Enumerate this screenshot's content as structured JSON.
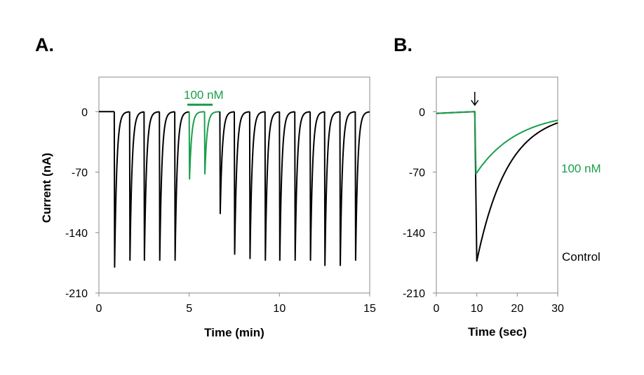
{
  "colors": {
    "control": "#000000",
    "drug": "#1a9e4b"
  },
  "chart_data": [
    {
      "panel_label": "A.",
      "type": "line",
      "xlabel": "Time (min)",
      "ylabel": "Current (nA)",
      "xlim": [
        0,
        15
      ],
      "ylim": [
        -210,
        40
      ],
      "xticks": [
        0,
        5,
        10,
        15
      ],
      "yticks": [
        0,
        -70,
        -140,
        -210
      ],
      "grid": false,
      "baseline": 0,
      "decay_tau_min": 0.12,
      "treatment": {
        "label": "100 nM",
        "bar_x": [
          4.9,
          6.3
        ],
        "bar_y": 8
      },
      "series": [
        {
          "role": "control",
          "color": "#000000",
          "pulses": [
            {
              "t": 0.85,
              "peak": -180
            },
            {
              "t": 1.7,
              "peak": -172
            },
            {
              "t": 2.5,
              "peak": -172
            },
            {
              "t": 3.35,
              "peak": -172
            },
            {
              "t": 4.2,
              "peak": -172
            },
            {
              "t": 6.7,
              "peak": -118
            },
            {
              "t": 7.5,
              "peak": -165
            },
            {
              "t": 8.35,
              "peak": -170
            },
            {
              "t": 9.2,
              "peak": -172
            },
            {
              "t": 10.0,
              "peak": -172
            },
            {
              "t": 10.85,
              "peak": -172
            },
            {
              "t": 11.7,
              "peak": -172
            },
            {
              "t": 12.5,
              "peak": -178
            },
            {
              "t": 13.35,
              "peak": -178
            },
            {
              "t": 14.2,
              "peak": -172
            }
          ]
        },
        {
          "role": "drug",
          "color": "#1a9e4b",
          "pulses": [
            {
              "t": 5.0,
              "peak": -78
            },
            {
              "t": 5.85,
              "peak": -72
            }
          ]
        }
      ]
    },
    {
      "panel_label": "B.",
      "type": "line",
      "xlabel": "Time (sec)",
      "ylabel": "",
      "xlim": [
        0,
        30
      ],
      "ylim": [
        -210,
        40
      ],
      "xticks": [
        0,
        10,
        20,
        30
      ],
      "yticks": [
        0,
        -70,
        -140,
        -210
      ],
      "grid": false,
      "arrow_x": 9.5,
      "series": [
        {
          "name": "Control",
          "color": "#000000",
          "onset": 9.5,
          "peak_t": 10.0,
          "peak": -173,
          "baseline_start": -2,
          "baseline_end": 0,
          "end_value": -13
        },
        {
          "name": "100 nM",
          "color": "#1a9e4b",
          "onset": 9.5,
          "peak_t": 9.8,
          "peak": -72,
          "baseline_start": -2,
          "baseline_end": 0,
          "end_value": -10
        }
      ]
    }
  ]
}
